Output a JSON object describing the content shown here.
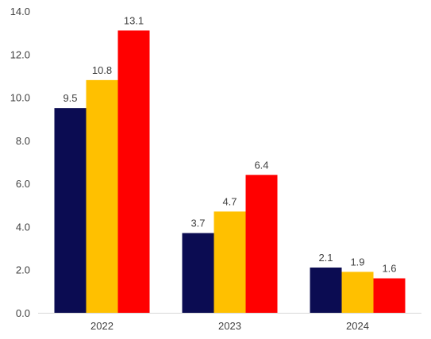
{
  "chart_data": {
    "type": "bar",
    "categories": [
      "2022",
      "2023",
      "2024"
    ],
    "series": [
      {
        "values": [
          9.5,
          3.7,
          2.1
        ],
        "color": "#0b0c52"
      },
      {
        "values": [
          10.8,
          4.7,
          1.9
        ],
        "color": "#ffc000"
      },
      {
        "values": [
          13.1,
          6.4,
          1.6
        ],
        "color": "#ff0000"
      }
    ],
    "data_labels": [
      [
        "9.5",
        "3.7",
        "2.1"
      ],
      [
        "10.8",
        "4.7",
        "1.9"
      ],
      [
        "13.1",
        "6.4",
        "1.6"
      ]
    ],
    "y_ticks": [
      "0.0",
      "2.0",
      "4.0",
      "6.0",
      "8.0",
      "10.0",
      "12.0",
      "14.0"
    ],
    "ylim": [
      0,
      14
    ],
    "grid": false,
    "legend": false
  }
}
